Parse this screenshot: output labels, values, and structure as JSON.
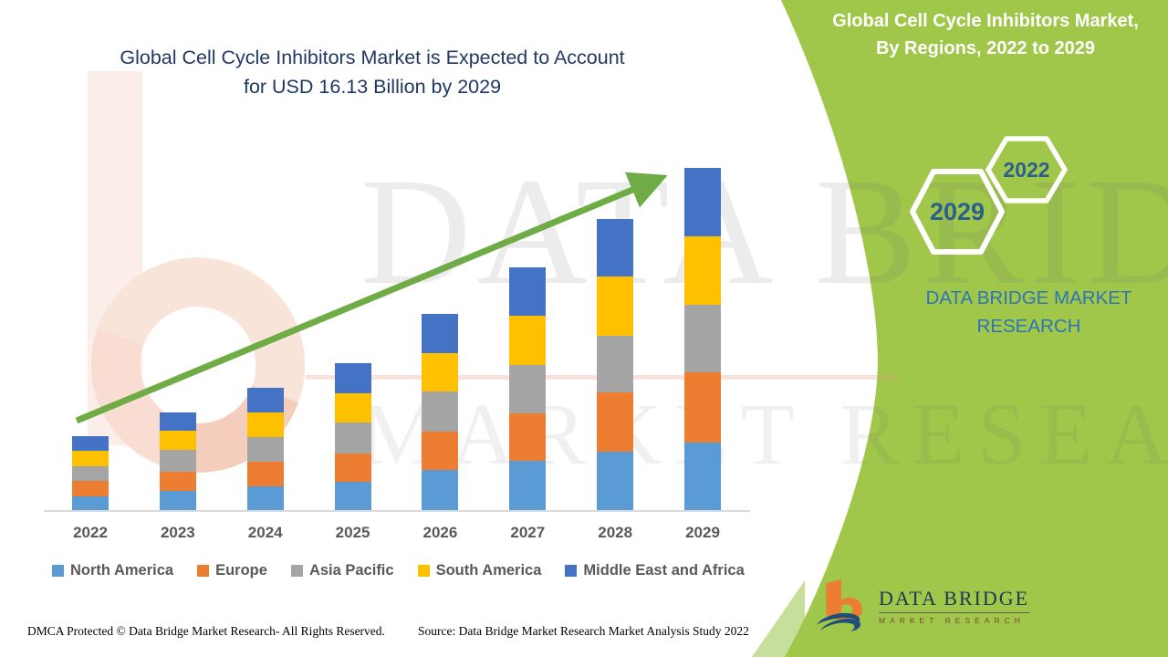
{
  "title": {
    "line1": "Global Cell Cycle Inhibitors Market is Expected to Account",
    "line2": "for USD 16.13 Billion by 2029",
    "color": "#1F3864"
  },
  "panel": {
    "bg_color": "#A0C64A",
    "title_line1": "Global Cell Cycle Inhibitors Market,",
    "title_line2": "By Regions, 2022 to 2029",
    "hexagons": [
      {
        "label": "2029"
      },
      {
        "label": "2022"
      }
    ],
    "brand_line1": "DATA BRIDGE MARKET",
    "brand_line2": "RESEARCH",
    "brand_color": "#2E75B6",
    "logo": {
      "wordmark": "DATA BRIDGE",
      "subtext": "MARKET RESEARCH"
    }
  },
  "watermark": {
    "line1": "DATA BRIDGE",
    "line2": "MARKET RESEARCH"
  },
  "chart_data": {
    "type": "bar",
    "stacked": true,
    "title": "Global Cell Cycle Inhibitors Market, By Regions, 2022 to 2029",
    "unit": "USD Billion",
    "xlabel": "",
    "ylabel": "",
    "ylim": [
      0,
      16.5
    ],
    "grid": false,
    "legend_position": "bottom",
    "trend_arrow": true,
    "categories": [
      "2022",
      "2023",
      "2024",
      "2025",
      "2026",
      "2027",
      "2028",
      "2029"
    ],
    "series": [
      {
        "name": "North America",
        "color": "#5B9BD5",
        "values": [
          0.66,
          0.9,
          1.12,
          1.33,
          1.88,
          2.33,
          2.76,
          3.2
        ]
      },
      {
        "name": "Europe",
        "color": "#ED7D31",
        "values": [
          0.72,
          0.9,
          1.17,
          1.35,
          1.82,
          2.22,
          2.79,
          3.27
        ]
      },
      {
        "name": "Asia Pacific",
        "color": "#A5A5A5",
        "values": [
          0.67,
          1.03,
          1.15,
          1.43,
          1.89,
          2.29,
          2.65,
          3.18
        ]
      },
      {
        "name": "South America",
        "color": "#FFC000",
        "values": [
          0.76,
          0.93,
          1.17,
          1.41,
          1.81,
          2.33,
          2.79,
          3.26
        ]
      },
      {
        "name": "Middle East and Africa",
        "color": "#4472C4",
        "values": [
          0.67,
          0.85,
          1.15,
          1.41,
          1.84,
          2.28,
          2.72,
          3.22
        ]
      }
    ],
    "totals": [
      3.48,
      4.61,
      5.76,
      6.93,
      9.24,
      11.45,
      13.71,
      16.13
    ],
    "annotation": "2029 total anchored to USD 16.13 Billion from headline; other values estimated from bar heights"
  },
  "footer": {
    "left": "DMCA Protected © Data Bridge Market Research- All Rights Reserved.",
    "right": "Source: Data Bridge Market Research Market Analysis Study 2022"
  },
  "colors": {
    "arrow_green": "#6FAC46",
    "axis_gray": "#D9D9D9",
    "label_gray": "#595959"
  }
}
